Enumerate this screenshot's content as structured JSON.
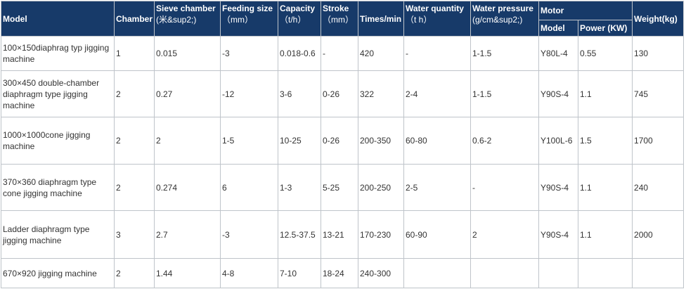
{
  "table": {
    "headers": {
      "model": "Model",
      "chamber": "Chamber",
      "sieve_chamber": "Sieve chamber",
      "sieve_chamber_unit": "(米&sup2;)",
      "feeding_size": "Feeding size",
      "feeding_size_unit": "（mm）",
      "capacity": "Capacity",
      "capacity_unit": "（t/h）",
      "stroke": "Stroke",
      "stroke_unit": "（mm）",
      "times_min": "Times/min",
      "water_quantity": "Water quantity",
      "water_quantity_unit": "（t h）",
      "water_pressure": "Water pressure",
      "water_pressure_unit": "(g/cm&sup2;)",
      "motor": "Motor",
      "motor_model": "Model",
      "motor_power": "Power (KW)",
      "weight": "Weight(kg)"
    },
    "rows": [
      {
        "model": "100×150diaphrag typ jigging machine",
        "chamber": "1",
        "sieve": "0.015",
        "feeding": "-3",
        "capacity": "0.018-0.6",
        "stroke": "-",
        "times": "420",
        "water_q": "-",
        "water_p": "1-1.5",
        "motor_model": "Y80L-4",
        "power": "0.55",
        "weight": "130"
      },
      {
        "model": "300×450 double-chamber diaphragm type jigging machine",
        "chamber": "2",
        "sieve": "0.27",
        "feeding": "-12",
        "capacity": "3-6",
        "stroke": "0-26",
        "times": "322",
        "water_q": "2-4",
        "water_p": "1-1.5",
        "motor_model": "Y90S-4",
        "power": "1.1",
        "weight": "745"
      },
      {
        "model": "1000×1000cone jigging machine",
        "chamber": "2",
        "sieve": "2",
        "feeding": "1-5",
        "capacity": "10-25",
        "stroke": "0-26",
        "times": "200-350",
        "water_q": "60-80",
        "water_p": "0.6-2",
        "motor_model": "Y100L-6",
        "power": "1.5",
        "weight": "1700"
      },
      {
        "model": "370×360 diaphragm type cone jigging machine",
        "chamber": "2",
        "sieve": "0.274",
        "feeding": "6",
        "capacity": "1-3",
        "stroke": "5-25",
        "times": "200-250",
        "water_q": "2-5",
        "water_p": "-",
        "motor_model": "Y90S-4",
        "power": "1.1",
        "weight": "240"
      },
      {
        "model": "Ladder diaphragm type jigging machine",
        "chamber": "3",
        "sieve": "2.7",
        "feeding": "-3",
        "capacity": "12.5-37.5",
        "stroke": "13-21",
        "times": "170-230",
        "water_q": "60-90",
        "water_p": "2",
        "motor_model": "Y90S-4",
        "power": "1.1",
        "weight": "2000"
      },
      {
        "model": "670×920 jigging machine",
        "chamber": "2",
        "sieve": "1.44",
        "feeding": "4-8",
        "capacity": "7-10",
        "stroke": "18-24",
        "times": "240-300",
        "water_q": "",
        "water_p": "",
        "motor_model": "",
        "power": "",
        "weight": ""
      }
    ]
  }
}
